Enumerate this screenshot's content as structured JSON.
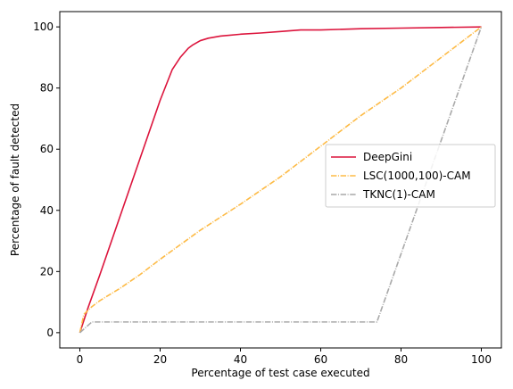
{
  "chart_data": {
    "type": "line",
    "title": "",
    "xlabel": "Percentage of test case executed",
    "ylabel": "Percentage of fault detected",
    "xlim": [
      -5,
      105
    ],
    "ylim": [
      -5,
      105
    ],
    "xticks": [
      0,
      20,
      40,
      60,
      80,
      100
    ],
    "yticks": [
      0,
      20,
      40,
      60,
      80,
      100
    ],
    "grid": false,
    "legend_position": "center-right",
    "series": [
      {
        "name": "DeepGini",
        "color": "#dc143c",
        "style": "solid",
        "x": [
          0,
          2,
          5,
          10,
          15,
          20,
          23,
          25,
          26,
          27,
          28,
          30,
          32,
          35,
          40,
          45,
          50,
          55,
          60,
          70,
          80,
          90,
          100
        ],
        "y": [
          0,
          8,
          19,
          38,
          57,
          76,
          86,
          90,
          91.5,
          93,
          94,
          95.5,
          96.3,
          97,
          97.6,
          98,
          98.5,
          99,
          99,
          99.4,
          99.6,
          99.8,
          100
        ]
      },
      {
        "name": "LSC(1000,100)-CAM",
        "color": "#fdbb47",
        "style": "dashdot",
        "x": [
          0,
          1,
          3,
          5,
          10,
          15,
          20,
          30,
          40,
          50,
          60,
          70,
          80,
          90,
          100
        ],
        "y": [
          0,
          6,
          8.5,
          10.5,
          14.5,
          19,
          24,
          33.5,
          42,
          51,
          61,
          71,
          80,
          90,
          100
        ]
      },
      {
        "name": "TKNC(1)-CAM",
        "color": "#a9a9a9",
        "style": "dashdot",
        "x": [
          0,
          3,
          10,
          20,
          30,
          40,
          50,
          60,
          70,
          74,
          100
        ],
        "y": [
          0,
          3.5,
          3.5,
          3.5,
          3.5,
          3.5,
          3.5,
          3.5,
          3.5,
          3.5,
          100
        ]
      }
    ]
  }
}
